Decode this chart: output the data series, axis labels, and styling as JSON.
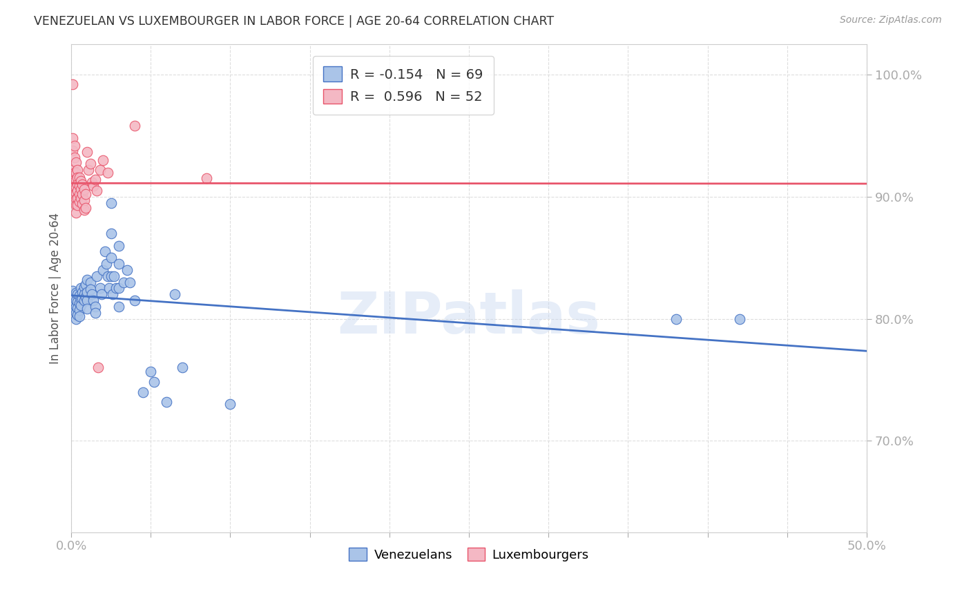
{
  "title": "VENEZUELAN VS LUXEMBOURGER IN LABOR FORCE | AGE 20-64 CORRELATION CHART",
  "source": "Source: ZipAtlas.com",
  "ylabel": "In Labor Force | Age 20-64",
  "xlim": [
    0.0,
    0.5
  ],
  "ylim": [
    0.625,
    1.025
  ],
  "yticks": [
    0.7,
    0.8,
    0.9,
    1.0
  ],
  "ytick_labels": [
    "70.0%",
    "80.0%",
    "90.0%",
    "100.0%"
  ],
  "xticks": [
    0.0,
    0.05,
    0.1,
    0.15,
    0.2,
    0.25,
    0.3,
    0.35,
    0.4,
    0.45,
    0.5
  ],
  "xtick_labels": [
    "0.0%",
    "",
    "",
    "",
    "",
    "",
    "",
    "",
    "",
    "",
    "50.0%"
  ],
  "venezuelan_R": -0.154,
  "venezuelan_N": 69,
  "luxembourger_R": 0.596,
  "luxembourger_N": 52,
  "blue_color": "#aac4e8",
  "pink_color": "#f4b8c4",
  "blue_line_color": "#4472c4",
  "pink_line_color": "#e8546a",
  "watermark": "ZIPatlas",
  "venezuelan_points": [
    [
      0.001,
      0.823
    ],
    [
      0.002,
      0.818
    ],
    [
      0.002,
      0.812
    ],
    [
      0.002,
      0.808
    ],
    [
      0.003,
      0.821
    ],
    [
      0.003,
      0.815
    ],
    [
      0.003,
      0.81
    ],
    [
      0.003,
      0.805
    ],
    [
      0.003,
      0.8
    ],
    [
      0.004,
      0.82
    ],
    [
      0.004,
      0.814
    ],
    [
      0.004,
      0.809
    ],
    [
      0.004,
      0.803
    ],
    [
      0.005,
      0.819
    ],
    [
      0.005,
      0.813
    ],
    [
      0.005,
      0.807
    ],
    [
      0.005,
      0.802
    ],
    [
      0.006,
      0.825
    ],
    [
      0.006,
      0.816
    ],
    [
      0.006,
      0.811
    ],
    [
      0.007,
      0.822
    ],
    [
      0.007,
      0.817
    ],
    [
      0.008,
      0.826
    ],
    [
      0.008,
      0.82
    ],
    [
      0.008,
      0.815
    ],
    [
      0.009,
      0.828
    ],
    [
      0.009,
      0.818
    ],
    [
      0.01,
      0.832
    ],
    [
      0.01,
      0.822
    ],
    [
      0.01,
      0.815
    ],
    [
      0.01,
      0.808
    ],
    [
      0.012,
      0.83
    ],
    [
      0.012,
      0.824
    ],
    [
      0.013,
      0.82
    ],
    [
      0.014,
      0.815
    ],
    [
      0.015,
      0.81
    ],
    [
      0.015,
      0.805
    ],
    [
      0.016,
      0.835
    ],
    [
      0.018,
      0.825
    ],
    [
      0.019,
      0.82
    ],
    [
      0.02,
      0.84
    ],
    [
      0.021,
      0.855
    ],
    [
      0.022,
      0.845
    ],
    [
      0.023,
      0.835
    ],
    [
      0.024,
      0.825
    ],
    [
      0.025,
      0.895
    ],
    [
      0.025,
      0.87
    ],
    [
      0.025,
      0.85
    ],
    [
      0.025,
      0.835
    ],
    [
      0.026,
      0.82
    ],
    [
      0.027,
      0.835
    ],
    [
      0.028,
      0.825
    ],
    [
      0.03,
      0.86
    ],
    [
      0.03,
      0.845
    ],
    [
      0.03,
      0.825
    ],
    [
      0.03,
      0.81
    ],
    [
      0.033,
      0.83
    ],
    [
      0.035,
      0.84
    ],
    [
      0.037,
      0.83
    ],
    [
      0.04,
      0.815
    ],
    [
      0.045,
      0.74
    ],
    [
      0.05,
      0.757
    ],
    [
      0.052,
      0.748
    ],
    [
      0.06,
      0.732
    ],
    [
      0.065,
      0.82
    ],
    [
      0.07,
      0.76
    ],
    [
      0.1,
      0.73
    ],
    [
      0.38,
      0.8
    ],
    [
      0.42,
      0.8
    ]
  ],
  "luxembourger_points": [
    [
      0.001,
      0.992
    ],
    [
      0.001,
      0.948
    ],
    [
      0.001,
      0.938
    ],
    [
      0.001,
      0.922
    ],
    [
      0.002,
      0.942
    ],
    [
      0.002,
      0.932
    ],
    [
      0.002,
      0.92
    ],
    [
      0.002,
      0.914
    ],
    [
      0.002,
      0.908
    ],
    [
      0.002,
      0.902
    ],
    [
      0.003,
      0.928
    ],
    [
      0.003,
      0.92
    ],
    [
      0.003,
      0.914
    ],
    [
      0.003,
      0.908
    ],
    [
      0.003,
      0.903
    ],
    [
      0.003,
      0.898
    ],
    [
      0.003,
      0.893
    ],
    [
      0.003,
      0.887
    ],
    [
      0.004,
      0.922
    ],
    [
      0.004,
      0.916
    ],
    [
      0.004,
      0.91
    ],
    [
      0.004,
      0.905
    ],
    [
      0.004,
      0.899
    ],
    [
      0.004,
      0.893
    ],
    [
      0.005,
      0.916
    ],
    [
      0.005,
      0.909
    ],
    [
      0.005,
      0.902
    ],
    [
      0.005,
      0.896
    ],
    [
      0.006,
      0.913
    ],
    [
      0.006,
      0.906
    ],
    [
      0.006,
      0.899
    ],
    [
      0.007,
      0.91
    ],
    [
      0.007,
      0.902
    ],
    [
      0.007,
      0.894
    ],
    [
      0.008,
      0.906
    ],
    [
      0.008,
      0.897
    ],
    [
      0.008,
      0.889
    ],
    [
      0.009,
      0.902
    ],
    [
      0.009,
      0.891
    ],
    [
      0.01,
      0.937
    ],
    [
      0.011,
      0.922
    ],
    [
      0.012,
      0.927
    ],
    [
      0.013,
      0.912
    ],
    [
      0.014,
      0.909
    ],
    [
      0.015,
      0.914
    ],
    [
      0.016,
      0.905
    ],
    [
      0.017,
      0.76
    ],
    [
      0.018,
      0.922
    ],
    [
      0.02,
      0.93
    ],
    [
      0.023,
      0.92
    ],
    [
      0.04,
      0.958
    ],
    [
      0.085,
      0.915
    ]
  ]
}
